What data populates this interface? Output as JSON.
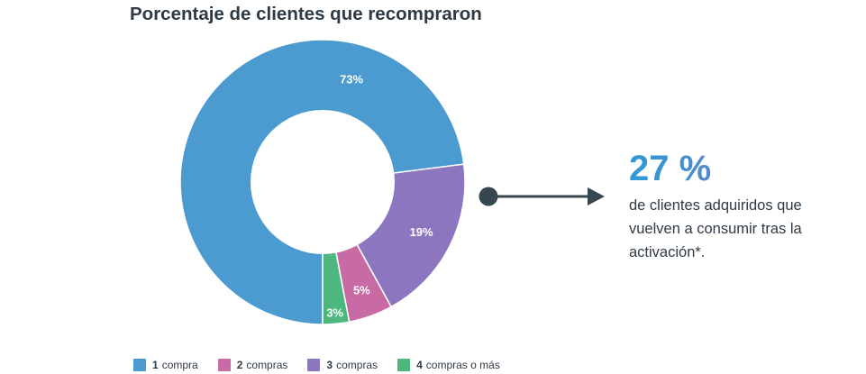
{
  "chart_data": {
    "type": "pie",
    "title": "Porcentaje de clientes que recompraron",
    "categories": [
      "1 compra",
      "2 compras",
      "3 compras",
      "4 compras o más"
    ],
    "values": [
      73,
      5,
      19,
      3
    ],
    "labels": [
      "73%",
      "5%",
      "19%",
      "3%"
    ],
    "colors": [
      "#4b9ad0",
      "#c86aa4",
      "#8b76bf",
      "#4db87e"
    ],
    "legend": [
      {
        "num": "1",
        "text": "compra",
        "color": "#4b9ad0"
      },
      {
        "num": "2",
        "text": "compras",
        "color": "#c86aa4"
      },
      {
        "num": "3",
        "text": "compras",
        "color": "#8b76bf"
      },
      {
        "num": "4",
        "text": "compras o más",
        "color": "#4db87e"
      }
    ],
    "legend_placement": "bottom"
  },
  "callout": {
    "value": "27 %",
    "text": "de clientes adquiridos que vuelven a consumir tras la activación*."
  }
}
